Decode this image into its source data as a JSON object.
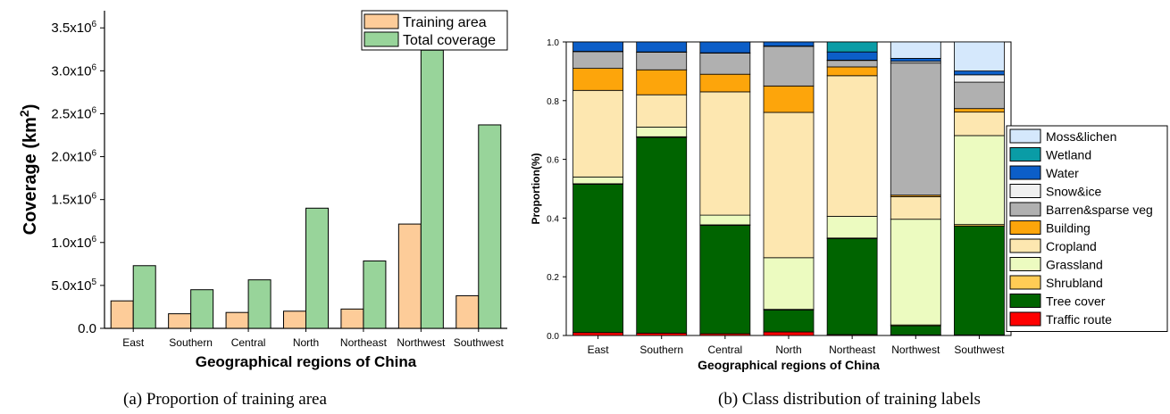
{
  "captions": {
    "a": "(a)    Proportion of training area",
    "b": "(b)    Class distribution of training labels"
  },
  "chart_data": [
    {
      "type": "bar",
      "categories": [
        "East",
        "Southern",
        "Central",
        "North",
        "Northeast",
        "Northwest",
        "Southwest"
      ],
      "series": [
        {
          "name": "Training area",
          "color": "#fdcc99",
          "values": [
            320000,
            170000,
            185000,
            200000,
            225000,
            1215000,
            380000
          ]
        },
        {
          "name": "Total coverage",
          "color": "#98d49a",
          "values": [
            730000,
            450000,
            565000,
            1400000,
            785000,
            3240000,
            2370000
          ]
        }
      ],
      "xlabel": "Geographical regions of China",
      "ylabel_main": "Coverage (km",
      "ylabel_sup": "2",
      "ylabel_end": ")",
      "ylim": [
        0,
        3700000
      ],
      "yticks": [
        {
          "mant": "0.0",
          "exp": ""
        },
        {
          "mant": "5.0x10",
          "exp": "5"
        },
        {
          "mant": "1.0x10",
          "exp": "6"
        },
        {
          "mant": "1.5x10",
          "exp": "6"
        },
        {
          "mant": "2.0x10",
          "exp": "6"
        },
        {
          "mant": "2.5x10",
          "exp": "6"
        },
        {
          "mant": "3.0x10",
          "exp": "6"
        },
        {
          "mant": "3.5x10",
          "exp": "6"
        }
      ],
      "ytick_values": [
        0,
        500000,
        1000000,
        1500000,
        2000000,
        2500000,
        3000000,
        3500000
      ],
      "legend_position": "top-right"
    },
    {
      "type": "stacked-bar",
      "categories": [
        "East",
        "Southern",
        "Central",
        "North",
        "Northeast",
        "Northwest",
        "Southwest"
      ],
      "series": [
        {
          "name": "Traffic route",
          "color": "#fe0000",
          "values": [
            0.01,
            0.008,
            0.006,
            0.012,
            0.003,
            0.002,
            0.002
          ]
        },
        {
          "name": "Tree cover",
          "color": "#006400",
          "values": [
            0.505,
            0.667,
            0.369,
            0.075,
            0.327,
            0.031,
            0.371
          ]
        },
        {
          "name": "Shrubland",
          "color": "#ffcc55",
          "values": [
            0.002,
            0.002,
            0.002,
            0.002,
            0.002,
            0.003,
            0.005
          ]
        },
        {
          "name": "Grassland",
          "color": "#ecfbc0",
          "values": [
            0.023,
            0.033,
            0.033,
            0.176,
            0.074,
            0.36,
            0.303
          ]
        },
        {
          "name": "Cropland",
          "color": "#fde7b0",
          "values": [
            0.295,
            0.11,
            0.42,
            0.495,
            0.479,
            0.077,
            0.08
          ]
        },
        {
          "name": "Building",
          "color": "#fda50b",
          "values": [
            0.075,
            0.085,
            0.06,
            0.09,
            0.03,
            0.005,
            0.012
          ]
        },
        {
          "name": "Barren&sparse veg",
          "color": "#b0b0b0",
          "values": [
            0.057,
            0.06,
            0.072,
            0.135,
            0.022,
            0.45,
            0.09
          ]
        },
        {
          "name": "Snow&ice",
          "color": "#f0f0f0",
          "values": [
            0.001,
            0.001,
            0.001,
            0.001,
            0.001,
            0.006,
            0.025
          ]
        },
        {
          "name": "Water",
          "color": "#0c5ec8",
          "values": [
            0.032,
            0.034,
            0.037,
            0.014,
            0.028,
            0.01,
            0.013
          ]
        },
        {
          "name": "Wetland",
          "color": "#0a9ca6",
          "values": [
            0,
            0,
            0,
            0,
            0.034,
            0,
            0
          ]
        },
        {
          "name": "Moss&lichen",
          "color": "#d5e8fc",
          "values": [
            0,
            0,
            0,
            0,
            0,
            0.056,
            0.099
          ]
        }
      ],
      "xlabel": "Geographical regions of China",
      "ylabel": "Proportion(%)",
      "ylim": [
        0,
        1
      ],
      "yticks": [
        "0.0",
        "0.2",
        "0.4",
        "0.6",
        "0.8",
        "1.0"
      ],
      "ytick_values": [
        0,
        0.2,
        0.4,
        0.6,
        0.8,
        1.0
      ],
      "legend_position": "right"
    }
  ]
}
